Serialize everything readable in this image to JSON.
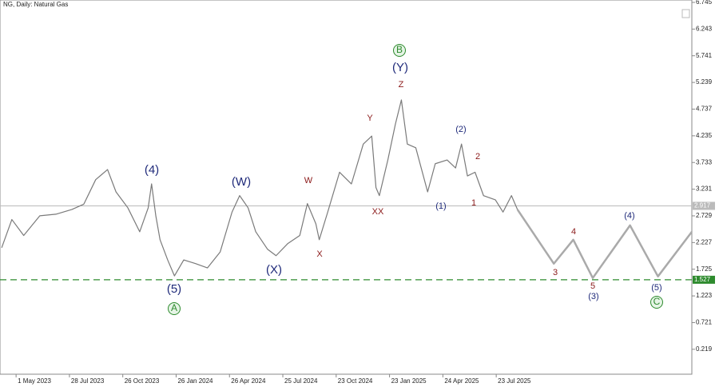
{
  "chart_data": {
    "type": "line",
    "title": "NG, Daily: Natural Gas",
    "xlim": [
      -19,
      798
    ],
    "xticks": [
      {
        "value": 0,
        "label": "1 May 2023"
      },
      {
        "value": 63,
        "label": "28 Jul 2023"
      },
      {
        "value": 126,
        "label": "26 Oct 2023"
      },
      {
        "value": 189,
        "label": "26 Jan 2024"
      },
      {
        "value": 252,
        "label": "26 Apr 2024"
      },
      {
        "value": 315,
        "label": "25 Jul 2024"
      },
      {
        "value": 378,
        "label": "23 Oct 2024"
      },
      {
        "value": 441,
        "label": "23 Jan 2025"
      },
      {
        "value": 504,
        "label": "24 Apr 2025"
      },
      {
        "value": 567,
        "label": "23 Jul 2025"
      }
    ],
    "ylim": [
      -0.25,
      6.79
    ],
    "yticks": [
      6.745,
      6.243,
      5.741,
      5.239,
      4.737,
      4.235,
      3.733,
      3.231,
      2.729,
      2.227,
      1.725,
      1.223,
      0.721,
      0.219
    ],
    "series": [
      {
        "color": "#7a7a7a",
        "x": [
          -17,
          -5,
          9,
          28,
          47,
          66,
          80,
          94,
          108,
          118,
          132,
          146,
          156,
          160,
          165,
          170,
          179,
          187,
          198,
          212,
          226,
          241,
          255,
          264,
          274,
          283,
          297,
          307,
          321,
          335,
          344,
          354,
          358,
          368,
          382,
          396,
          410,
          420,
          425,
          429,
          439,
          448,
          455,
          462,
          472,
          486,
          495,
          509,
          519,
          526,
          533,
          542,
          552,
          566,
          575,
          585,
          592
        ],
        "values": [
          2.13,
          2.66,
          2.36,
          2.73,
          2.76,
          2.85,
          2.95,
          3.41,
          3.6,
          3.18,
          2.88,
          2.43,
          2.88,
          3.33,
          2.73,
          2.28,
          1.9,
          1.6,
          1.9,
          1.83,
          1.75,
          2.05,
          2.8,
          3.11,
          2.88,
          2.43,
          2.1,
          1.98,
          2.21,
          2.36,
          2.96,
          2.58,
          2.28,
          2.8,
          3.55,
          3.33,
          4.08,
          4.23,
          3.26,
          3.11,
          3.78,
          4.46,
          4.91,
          4.08,
          4.01,
          3.18,
          3.71,
          3.78,
          3.63,
          4.08,
          3.48,
          3.55,
          3.11,
          3.03,
          2.8,
          3.11,
          2.85
        ]
      },
      {
        "color": "#aaaaaa",
        "x": [
          592,
          635,
          658,
          681,
          725,
          758,
          798
        ],
        "values": [
          2.85,
          1.83,
          2.28,
          1.56,
          2.55,
          1.59,
          2.43
        ]
      }
    ],
    "current_price": 2.917,
    "current_price_color": "#bbbbbb",
    "support_level": 1.527,
    "support_color": "#2e8b2e",
    "wave_labels": [
      {
        "text": "(4)",
        "color": "#1f2a7a"
      },
      {
        "text": "(5)",
        "color": "#1f2a7a"
      },
      {
        "text": "A",
        "color": "#2e8b2e",
        "circled": true
      },
      {
        "text": "(W)",
        "color": "#1f2a7a"
      },
      {
        "text": "(X)",
        "color": "#1f2a7a"
      },
      {
        "text": "W",
        "color": "#8b1a1a"
      },
      {
        "text": "X",
        "color": "#8b1a1a"
      },
      {
        "text": "Y",
        "color": "#8b1a1a"
      },
      {
        "text": "XX",
        "color": "#8b1a1a"
      },
      {
        "text": "Z",
        "color": "#8b1a1a"
      },
      {
        "text": "(Y)",
        "color": "#1f2a7a"
      },
      {
        "text": "B",
        "color": "#2e8b2e",
        "circled": true
      },
      {
        "text": "(1)",
        "color": "#1f2a7a"
      },
      {
        "text": "(2)",
        "color": "#1f2a7a"
      },
      {
        "text": "1",
        "color": "#8b1a1a"
      },
      {
        "text": "2",
        "color": "#8b1a1a"
      },
      {
        "text": "3",
        "color": "#8b1a1a"
      },
      {
        "text": "4",
        "color": "#8b1a1a"
      },
      {
        "text": "5",
        "color": "#8b1a1a"
      },
      {
        "text": "(3)",
        "color": "#1f2a7a"
      },
      {
        "text": "(4)",
        "color": "#1f2a7a"
      },
      {
        "text": "(5)",
        "color": "#1f2a7a"
      },
      {
        "text": "C",
        "color": "#2e8b2e",
        "circled": true
      }
    ]
  }
}
